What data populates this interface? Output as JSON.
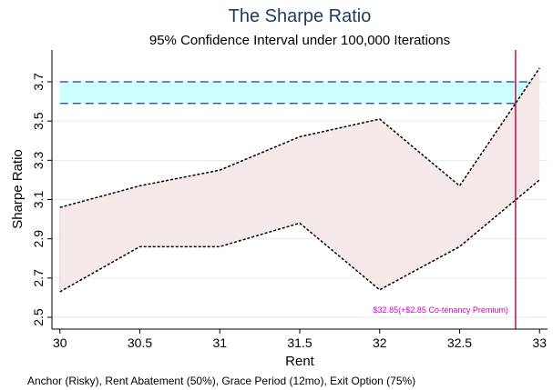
{
  "chart_data": {
    "type": "line",
    "title": "The Sharpe Ratio",
    "subtitle": "95% Confidence Interval under 100,000 Iterations",
    "x_label": "Rent",
    "y_label": "Sharpe Ratio",
    "x": [
      30,
      30.5,
      31,
      31.5,
      32,
      32.5,
      33
    ],
    "series": [
      {
        "color": "#000000",
        "values": [
          3.06,
          3.17,
          3.25,
          3.42,
          3.51,
          3.17,
          3.77
        ]
      },
      {
        "color": "#000000",
        "values": [
          2.63,
          2.86,
          2.86,
          2.98,
          2.64,
          2.86,
          3.2
        ]
      }
    ],
    "area_color": "#f5e9e9",
    "reference_band": {
      "ymin": 3.59,
      "ymax": 3.7,
      "color": "#ccffff",
      "line_color": "#1a3fb0"
    },
    "reference_line": {
      "x": 32.85,
      "color": "#c0104f"
    },
    "annotation": "$32.85(+$2.85 Co-tenancy Premium)",
    "annotation_color": "#cc00cc",
    "note": "Anchor (Risky), Rent Abatement (50%), Grace Period (12mo), Exit Option (75%)",
    "xlim": [
      29.95,
      33.05
    ],
    "ylim": [
      2.44,
      3.862
    ],
    "xticks": [
      30,
      30.5,
      31,
      31.5,
      32,
      32.5,
      33
    ],
    "yticks": [
      2.5,
      2.7,
      2.9,
      3.1,
      3.3,
      3.5,
      3.7
    ],
    "grid": true
  }
}
